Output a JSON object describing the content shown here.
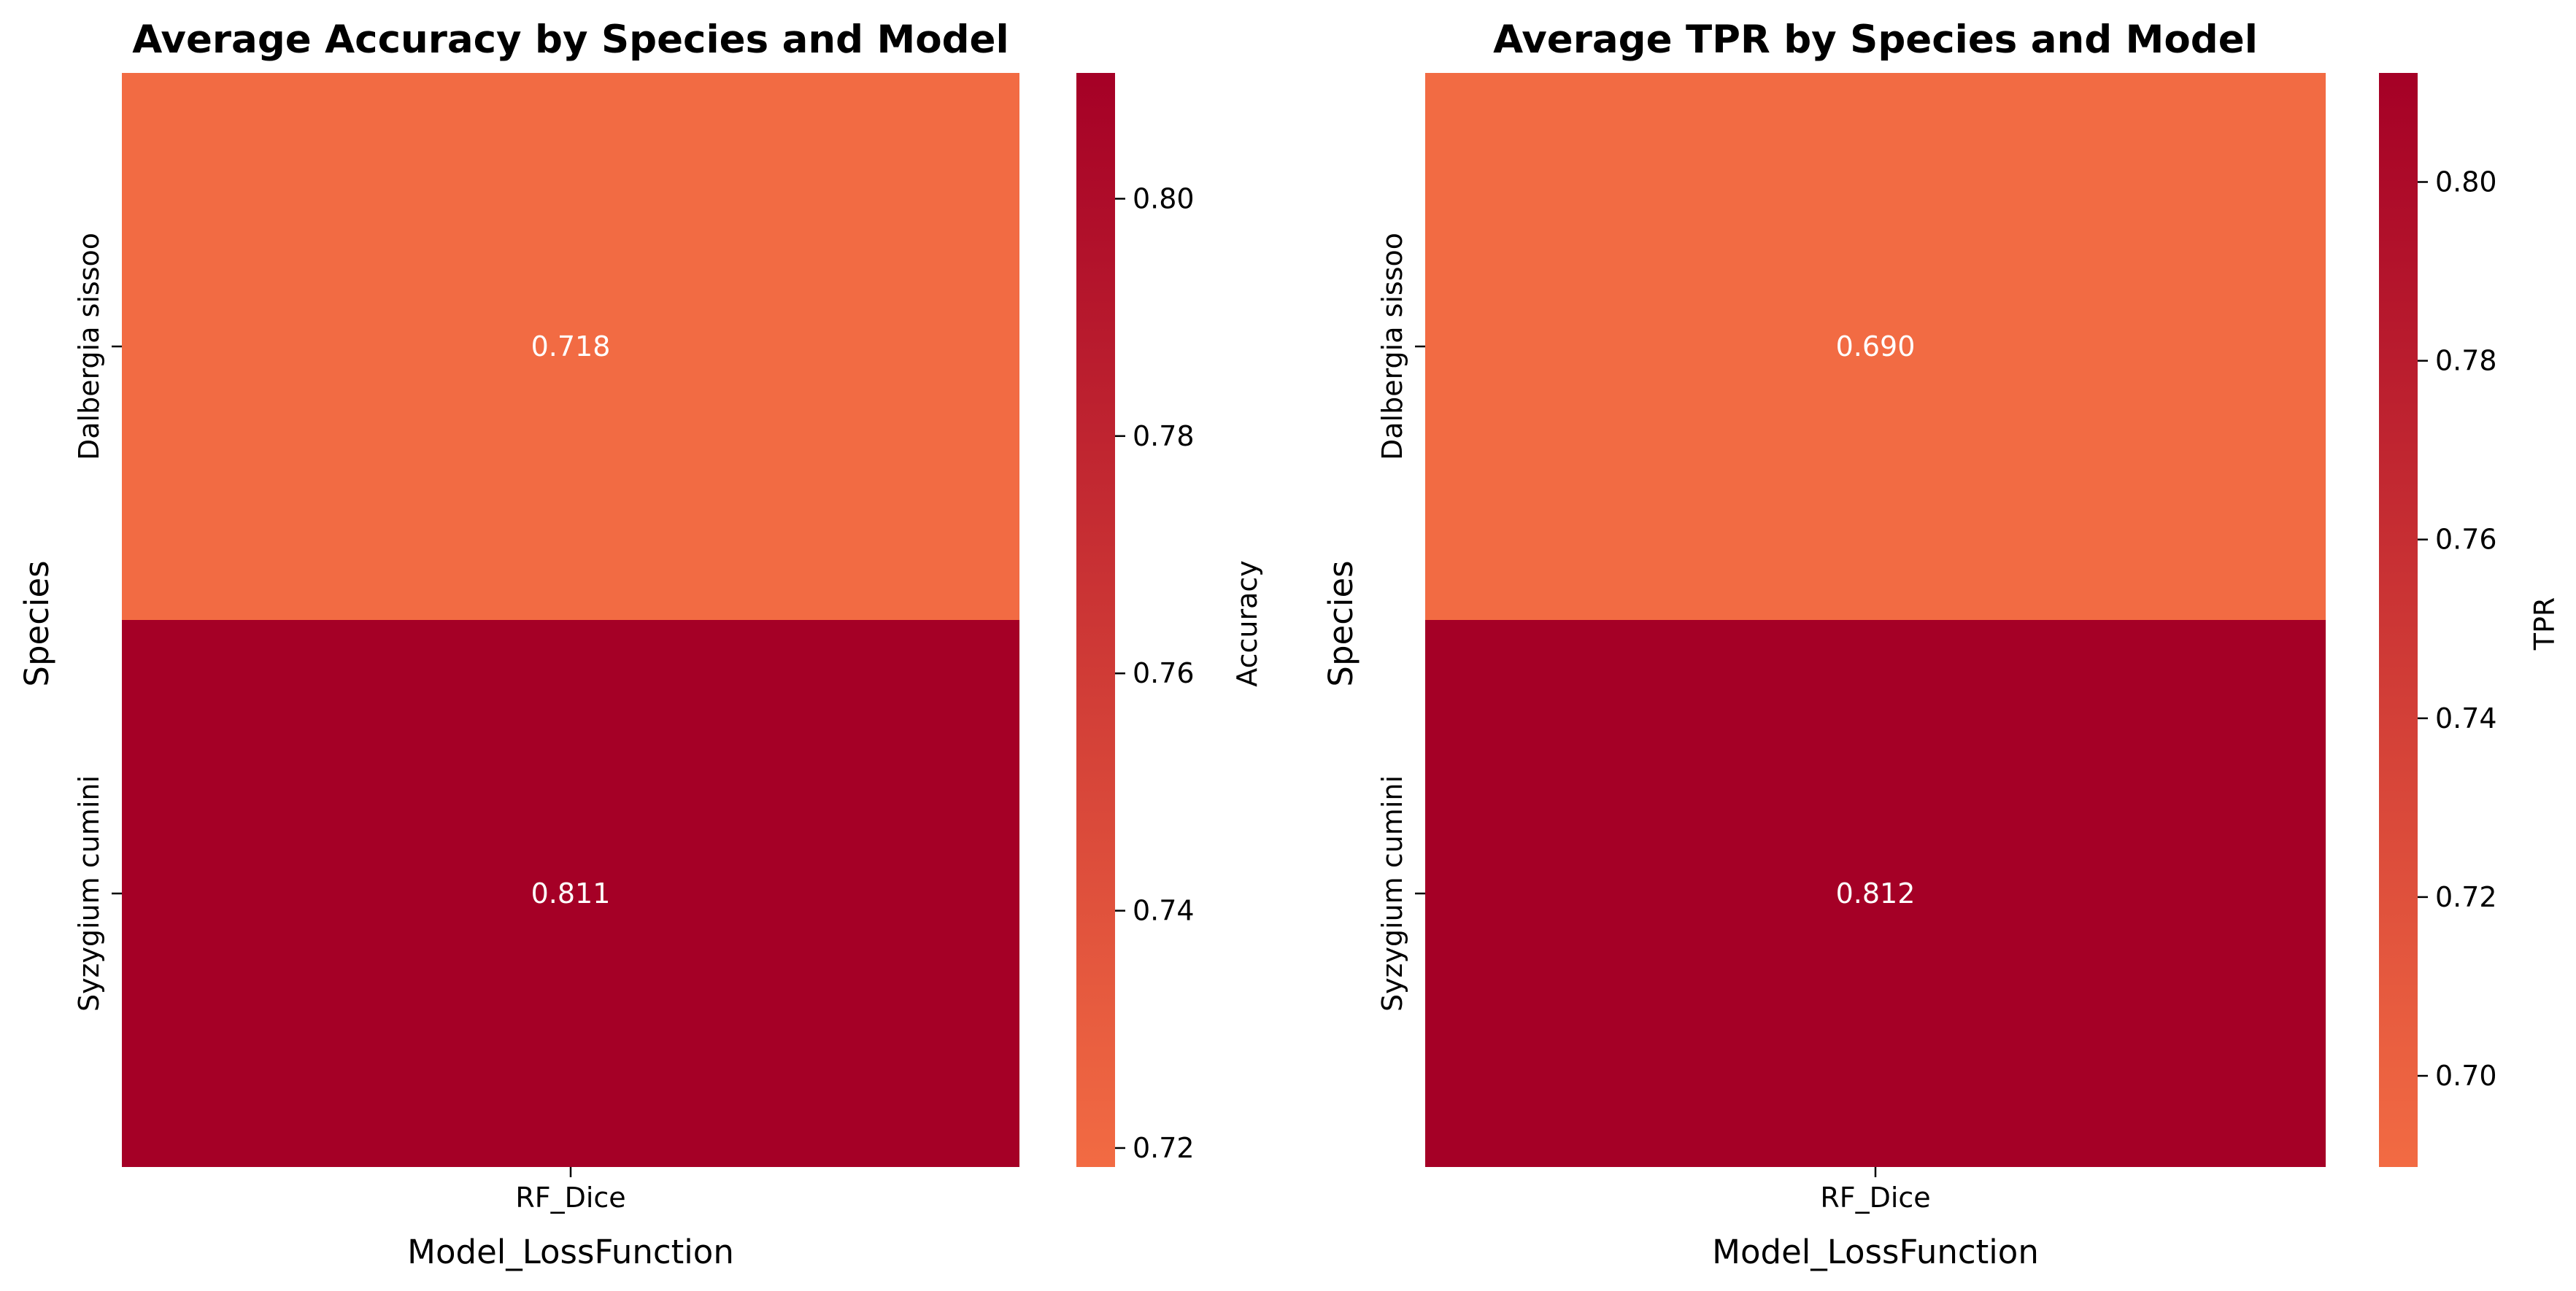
{
  "chart_data": [
    {
      "type": "heatmap",
      "title": "Average Accuracy by Species and Model",
      "xlabel": "Model_LossFunction",
      "ylabel": "Species",
      "x_categories": [
        "RF_Dice"
      ],
      "y_categories": [
        "Dalbergia sissoo",
        "Syzygium cumini"
      ],
      "values": [
        [
          0.718
        ],
        [
          0.811
        ]
      ],
      "cell_labels": [
        [
          "0.718"
        ],
        [
          "0.811"
        ]
      ],
      "colorbar": {
        "label": "Accuracy",
        "range": [
          0.7184,
          0.8106
        ],
        "ticks": [
          0.72,
          0.74,
          0.76,
          0.78,
          0.8
        ],
        "tick_labels": [
          "0.72",
          "0.74",
          "0.76",
          "0.78",
          "0.80"
        ]
      },
      "colormap": "Reds (upper range)",
      "colors": {
        "low": "#f26b43",
        "high": "#a50026"
      }
    },
    {
      "type": "heatmap",
      "title": "Average TPR by Species and Model",
      "xlabel": "Model_LossFunction",
      "ylabel": "Species",
      "x_categories": [
        "RF_Dice"
      ],
      "y_categories": [
        "Dalbergia sissoo",
        "Syzygium cumini"
      ],
      "values": [
        [
          0.69
        ],
        [
          0.812
        ]
      ],
      "cell_labels": [
        [
          "0.690"
        ],
        [
          "0.812"
        ]
      ],
      "colorbar": {
        "label": "TPR",
        "range": [
          0.6898,
          0.8122
        ],
        "ticks": [
          0.7,
          0.72,
          0.74,
          0.76,
          0.78,
          0.8
        ],
        "tick_labels": [
          "0.70",
          "0.72",
          "0.74",
          "0.76",
          "0.78",
          "0.80"
        ]
      },
      "colormap": "Reds (upper range)",
      "colors": {
        "low": "#f26b43",
        "high": "#a50026"
      }
    }
  ]
}
